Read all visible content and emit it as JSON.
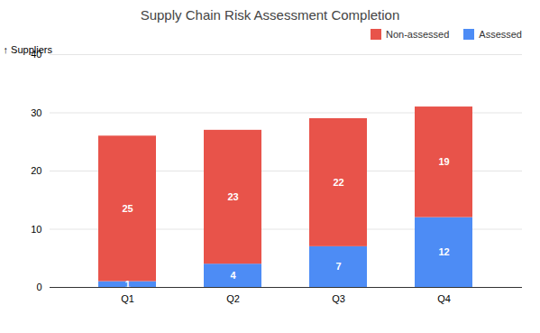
{
  "chart_data": {
    "type": "bar",
    "title": "Supply Chain Risk Assessment Completion",
    "categories": [
      "Q1",
      "Q2",
      "Q3",
      "Q4"
    ],
    "series": [
      {
        "name": "Assessed",
        "color": "#4D8CF5",
        "values": [
          1,
          4,
          7,
          12
        ]
      },
      {
        "name": "Non-assessed",
        "color": "#E8534A",
        "values": [
          25,
          23,
          22,
          19
        ]
      }
    ],
    "ylabel": "Suppliers",
    "ylim": [
      0,
      40
    ],
    "yticks": [
      0,
      10,
      20,
      30,
      40
    ],
    "stacked": true,
    "data_labels": true,
    "grid": true,
    "legend": "upper right"
  }
}
